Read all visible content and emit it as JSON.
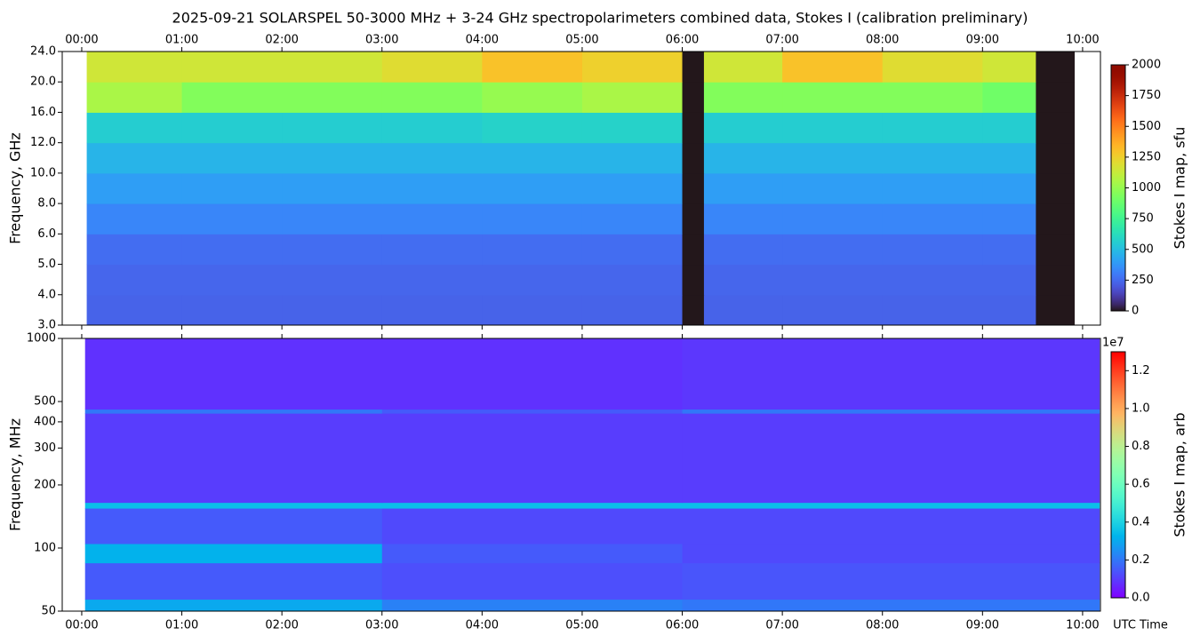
{
  "chart_data": [
    {
      "type": "heatmap",
      "title": "2025-09-21  SOLARSPEL  50-3000 MHz  +  3-24 GHz  spectropolarimeters combined data,  Stokes I  (calibration preliminary)",
      "ylabel": "Frequency, GHz",
      "colorbar_label": "Stokes I map, sfu",
      "colormap": "turbo",
      "yscale": "tick-spaced",
      "xtick_side": "top",
      "xlim": [
        -11.7,
        610.7
      ],
      "xticks": [
        {
          "value": 0,
          "label": "00:00"
        },
        {
          "value": 60,
          "label": "01:00"
        },
        {
          "value": 120,
          "label": "02:00"
        },
        {
          "value": 180,
          "label": "03:00"
        },
        {
          "value": 240,
          "label": "04:00"
        },
        {
          "value": 300,
          "label": "05:00"
        },
        {
          "value": 360,
          "label": "06:00"
        },
        {
          "value": 420,
          "label": "07:00"
        },
        {
          "value": 480,
          "label": "08:00"
        },
        {
          "value": 540,
          "label": "09:00"
        },
        {
          "value": 600,
          "label": "10:00"
        }
      ],
      "ylim": [
        3,
        24
      ],
      "yticks": [
        {
          "value": 3,
          "label": "3.0"
        },
        {
          "value": 4,
          "label": "4.0"
        },
        {
          "value": 5,
          "label": "5.0"
        },
        {
          "value": 6,
          "label": "6.0"
        },
        {
          "value": 8,
          "label": "8.0"
        },
        {
          "value": 10,
          "label": "10.0"
        },
        {
          "value": 12,
          "label": "12.0"
        },
        {
          "value": 16,
          "label": "16.0"
        },
        {
          "value": 20,
          "label": "20.0"
        },
        {
          "value": 24,
          "label": "24.0"
        }
      ],
      "clim": [
        0,
        2000
      ],
      "cticks": [
        0,
        250,
        500,
        750,
        1000,
        1250,
        1500,
        1750,
        2000
      ],
      "x_edges": [
        3,
        60,
        120,
        180,
        240,
        300,
        360,
        373,
        420,
        480,
        540,
        572,
        595
      ],
      "y_edges": [
        3,
        4,
        5,
        6,
        8,
        10,
        12,
        16,
        20,
        24
      ],
      "values": [
        [
          230,
          230,
          230,
          230,
          230,
          230,
          0,
          230,
          230,
          230,
          230,
          0
        ],
        [
          240,
          240,
          240,
          240,
          240,
          240,
          0,
          240,
          240,
          240,
          240,
          0
        ],
        [
          260,
          260,
          260,
          260,
          260,
          260,
          0,
          260,
          260,
          260,
          260,
          0
        ],
        [
          330,
          330,
          330,
          330,
          330,
          330,
          0,
          330,
          330,
          330,
          330,
          0
        ],
        [
          400,
          400,
          400,
          400,
          400,
          400,
          0,
          400,
          400,
          400,
          400,
          0
        ],
        [
          470,
          470,
          470,
          470,
          470,
          470,
          0,
          470,
          470,
          470,
          470,
          0
        ],
        [
          560,
          560,
          560,
          560,
          580,
          580,
          0,
          560,
          560,
          560,
          560,
          0
        ],
        [
          1050,
          950,
          950,
          950,
          1000,
          1050,
          0,
          950,
          950,
          950,
          900,
          0
        ],
        [
          1150,
          1150,
          1150,
          1200,
          1300,
          1250,
          0,
          1150,
          1300,
          1200,
          1150,
          0
        ]
      ]
    },
    {
      "type": "heatmap",
      "ylabel": "Frequency, MHz",
      "xlabel": "UTC Time",
      "colorbar_label": "Stokes I map, arb",
      "colorbar_offset": "1e7",
      "colormap": "rainbow",
      "yscale": "log",
      "xtick_side": "bottom",
      "xlim": [
        -11.7,
        610.7
      ],
      "xticks": [
        {
          "value": 0,
          "label": "00:00"
        },
        {
          "value": 60,
          "label": "01:00"
        },
        {
          "value": 120,
          "label": "02:00"
        },
        {
          "value": 180,
          "label": "03:00"
        },
        {
          "value": 240,
          "label": "04:00"
        },
        {
          "value": 300,
          "label": "05:00"
        },
        {
          "value": 360,
          "label": "06:00"
        },
        {
          "value": 420,
          "label": "07:00"
        },
        {
          "value": 480,
          "label": "08:00"
        },
        {
          "value": 540,
          "label": "09:00"
        },
        {
          "value": 600,
          "label": "10:00"
        }
      ],
      "ylim": [
        50,
        1000
      ],
      "yticks": [
        50,
        100,
        200,
        300,
        400,
        500,
        1000
      ],
      "clim": [
        0,
        1.3
      ],
      "cticks": [
        {
          "value": 0,
          "label": "0.0"
        },
        0.2,
        0.4,
        0.6,
        0.8,
        {
          "value": 1,
          "label": "1.0"
        },
        1.2
      ],
      "x_edges": [
        2,
        180,
        360,
        610
      ],
      "y_edges": [
        50,
        57,
        85,
        105,
        155,
        165,
        440,
        460,
        1000
      ],
      "values": [
        [
          0.3,
          0.22,
          0.2
        ],
        [
          0.15,
          0.13,
          0.14
        ],
        [
          0.32,
          0.15,
          0.12
        ],
        [
          0.15,
          0.12,
          0.12
        ],
        [
          0.35,
          0.35,
          0.35
        ],
        [
          0.1,
          0.1,
          0.1
        ],
        [
          0.2,
          0.15,
          0.2
        ],
        [
          0.08,
          0.08,
          0.09
        ]
      ]
    }
  ]
}
